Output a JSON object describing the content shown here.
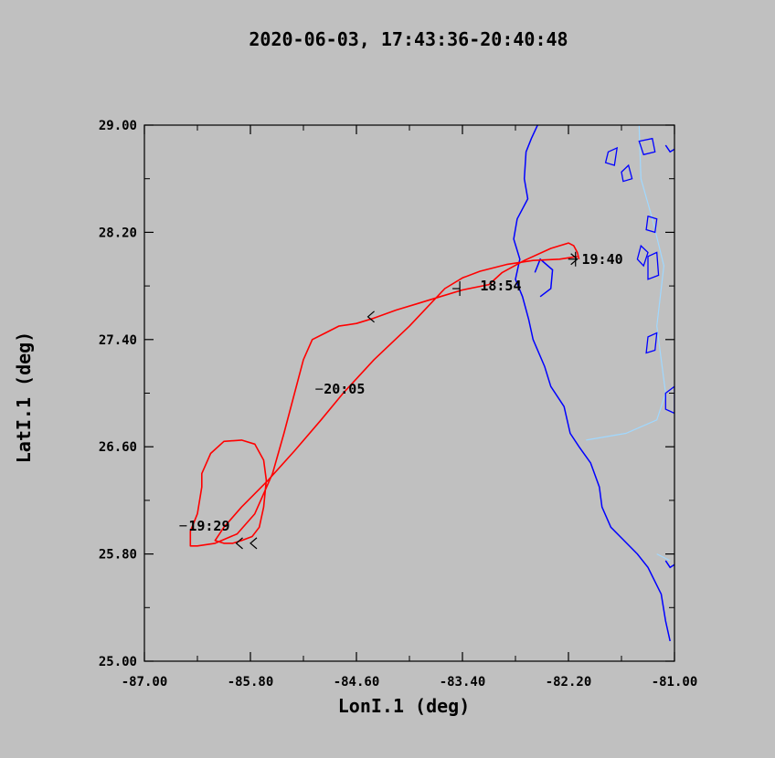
{
  "chart_data": {
    "type": "line",
    "title": "2020-06-03, 17:43:36-20:40:48",
    "xlabel": "LonI.1 (deg)",
    "ylabel": "LatI.1 (deg)",
    "xlim": [
      -87.0,
      -81.0
    ],
    "ylim": [
      25.0,
      29.0
    ],
    "x_ticks": [
      "-87.00",
      "-85.80",
      "-84.60",
      "-83.40",
      "-82.20",
      "-81.00"
    ],
    "y_ticks": [
      "25.00",
      "25.80",
      "26.60",
      "27.40",
      "28.20",
      "29.00"
    ],
    "grid": false,
    "legend": "none",
    "colors": {
      "track": "#ff0000",
      "coast": "#0000ff",
      "border": "#a0d8ff",
      "annotation": "#000000"
    },
    "series": [
      {
        "x": [
          -82.08,
          -82.1,
          -82.14,
          -82.2,
          -82.4,
          -82.7,
          -82.95,
          -83.1,
          -83.4,
          -83.65,
          -83.9,
          -84.15,
          -84.4,
          -84.6,
          -84.8,
          -84.95,
          -85.1,
          -85.2,
          -85.3,
          -85.42,
          -85.55,
          -85.75,
          -85.95,
          -86.2,
          -86.4,
          -86.48,
          -86.48,
          -86.4,
          -86.35,
          -86.35,
          -86.25,
          -86.1,
          -85.9,
          -85.75,
          -85.65,
          -85.62,
          -85.65,
          -85.7,
          -85.78,
          -85.9,
          -86.0,
          -86.1,
          -86.2,
          -86.1,
          -85.9,
          -85.6,
          -85.3,
          -85.0,
          -84.75,
          -84.4,
          -84.0,
          -83.6,
          -83.4,
          -83.2,
          -82.9,
          -82.6,
          -82.3,
          -82.1
        ],
        "y": [
          28.0,
          28.05,
          28.1,
          28.12,
          28.08,
          27.99,
          27.9,
          27.81,
          27.77,
          27.72,
          27.67,
          27.62,
          27.56,
          27.52,
          27.5,
          27.45,
          27.4,
          27.25,
          27.0,
          26.7,
          26.4,
          26.1,
          25.95,
          25.88,
          25.86,
          25.86,
          25.97,
          26.1,
          26.3,
          26.4,
          26.55,
          26.64,
          26.65,
          26.62,
          26.5,
          26.35,
          26.15,
          26.0,
          25.93,
          25.9,
          25.88,
          25.88,
          25.9,
          26.0,
          26.15,
          26.35,
          26.57,
          26.8,
          27.0,
          27.25,
          27.5,
          27.78,
          27.86,
          27.91,
          27.96,
          27.99,
          28.0,
          28.02
        ]
      }
    ],
    "time_labels": [
      {
        "text": "19:40",
        "lon": -82.05,
        "lat": 28.0
      },
      {
        "text": "18:54",
        "lon": -83.2,
        "lat": 27.8
      },
      {
        "text": "20:05",
        "lon": -84.97,
        "lat": 27.03
      },
      {
        "text": "19:29",
        "lon": -86.5,
        "lat": 26.01
      }
    ],
    "tick_marks": [
      {
        "lon": -82.12,
        "lat": 28.0,
        "dir": "v"
      },
      {
        "lon": -82.12,
        "lat": 28.0,
        "dir": "h"
      },
      {
        "lon": -83.43,
        "lat": 27.78,
        "dir": "v"
      },
      {
        "lon": -83.43,
        "lat": 27.78,
        "dir": "h"
      },
      {
        "lon": -84.98,
        "lat": 27.03,
        "dir": "h"
      },
      {
        "lon": -86.52,
        "lat": 26.01,
        "dir": "h"
      }
    ],
    "direction_arrows": [
      {
        "lon": -84.47,
        "lat": 27.57,
        "dir": "left"
      },
      {
        "lon": -85.96,
        "lat": 25.88,
        "dir": "left"
      },
      {
        "lon": -85.8,
        "lat": 25.88,
        "dir": "left"
      },
      {
        "lon": -82.1,
        "lat": 28.0,
        "dir": "right"
      }
    ],
    "coastline": [
      [
        [
          -82.55,
          29.0
        ],
        [
          -82.62,
          28.9
        ],
        [
          -82.68,
          28.8
        ],
        [
          -82.7,
          28.6
        ],
        [
          -82.66,
          28.45
        ],
        [
          -82.78,
          28.3
        ],
        [
          -82.82,
          28.15
        ],
        [
          -82.75,
          28.0
        ],
        [
          -82.8,
          27.85
        ],
        [
          -82.72,
          27.72
        ],
        [
          -82.65,
          27.55
        ],
        [
          -82.6,
          27.4
        ],
        [
          -82.47,
          27.2
        ],
        [
          -82.4,
          27.05
        ],
        [
          -82.25,
          26.9
        ],
        [
          -82.18,
          26.7
        ],
        [
          -82.08,
          26.6
        ],
        [
          -81.95,
          26.48
        ],
        [
          -81.85,
          26.3
        ],
        [
          -81.82,
          26.15
        ],
        [
          -81.72,
          26.0
        ],
        [
          -81.6,
          25.92
        ],
        [
          -81.42,
          25.8
        ],
        [
          -81.3,
          25.7
        ],
        [
          -81.15,
          25.5
        ],
        [
          -81.1,
          25.3
        ],
        [
          -81.05,
          25.15
        ]
      ],
      [
        [
          -82.52,
          27.72
        ],
        [
          -82.4,
          27.78
        ],
        [
          -82.38,
          27.92
        ],
        [
          -82.52,
          28.0
        ],
        [
          -82.58,
          27.9
        ]
      ],
      [
        [
          -81.1,
          25.75
        ],
        [
          -81.05,
          25.7
        ],
        [
          -81.0,
          25.72
        ]
      ],
      [
        [
          -81.1,
          28.85
        ],
        [
          -81.05,
          28.8
        ],
        [
          -81.0,
          28.82
        ]
      ]
    ],
    "lakes": [
      [
        [
          -81.75,
          28.8
        ],
        [
          -81.65,
          28.83
        ],
        [
          -81.68,
          28.7
        ],
        [
          -81.78,
          28.72
        ]
      ],
      [
        [
          -81.6,
          28.65
        ],
        [
          -81.52,
          28.7
        ],
        [
          -81.48,
          28.6
        ],
        [
          -81.58,
          28.58
        ]
      ],
      [
        [
          -81.4,
          28.88
        ],
        [
          -81.25,
          28.9
        ],
        [
          -81.22,
          28.8
        ],
        [
          -81.35,
          28.78
        ]
      ],
      [
        [
          -81.3,
          28.32
        ],
        [
          -81.2,
          28.3
        ],
        [
          -81.22,
          28.2
        ],
        [
          -81.32,
          28.22
        ]
      ],
      [
        [
          -81.38,
          28.1
        ],
        [
          -81.3,
          28.05
        ],
        [
          -81.35,
          27.95
        ],
        [
          -81.42,
          28.0
        ]
      ],
      [
        [
          -81.3,
          28.02
        ],
        [
          -81.2,
          28.05
        ],
        [
          -81.18,
          27.88
        ],
        [
          -81.3,
          27.85
        ]
      ],
      [
        [
          -81.3,
          27.42
        ],
        [
          -81.2,
          27.45
        ],
        [
          -81.22,
          27.32
        ],
        [
          -81.32,
          27.3
        ]
      ],
      [
        [
          -81.1,
          27.0
        ],
        [
          -81.0,
          27.05
        ],
        [
          -81.0,
          26.85
        ],
        [
          -81.1,
          26.88
        ]
      ]
    ],
    "borders": [
      [
        [
          -81.4,
          29.0
        ],
        [
          -81.38,
          28.6
        ],
        [
          -81.25,
          28.3
        ],
        [
          -81.12,
          27.95
        ],
        [
          -81.2,
          27.5
        ],
        [
          -81.1,
          27.0
        ],
        [
          -81.2,
          26.8
        ],
        [
          -81.55,
          26.7
        ],
        [
          -82.0,
          26.65
        ]
      ],
      [
        [
          -81.2,
          25.8
        ],
        [
          -81.05,
          25.75
        ]
      ]
    ]
  }
}
